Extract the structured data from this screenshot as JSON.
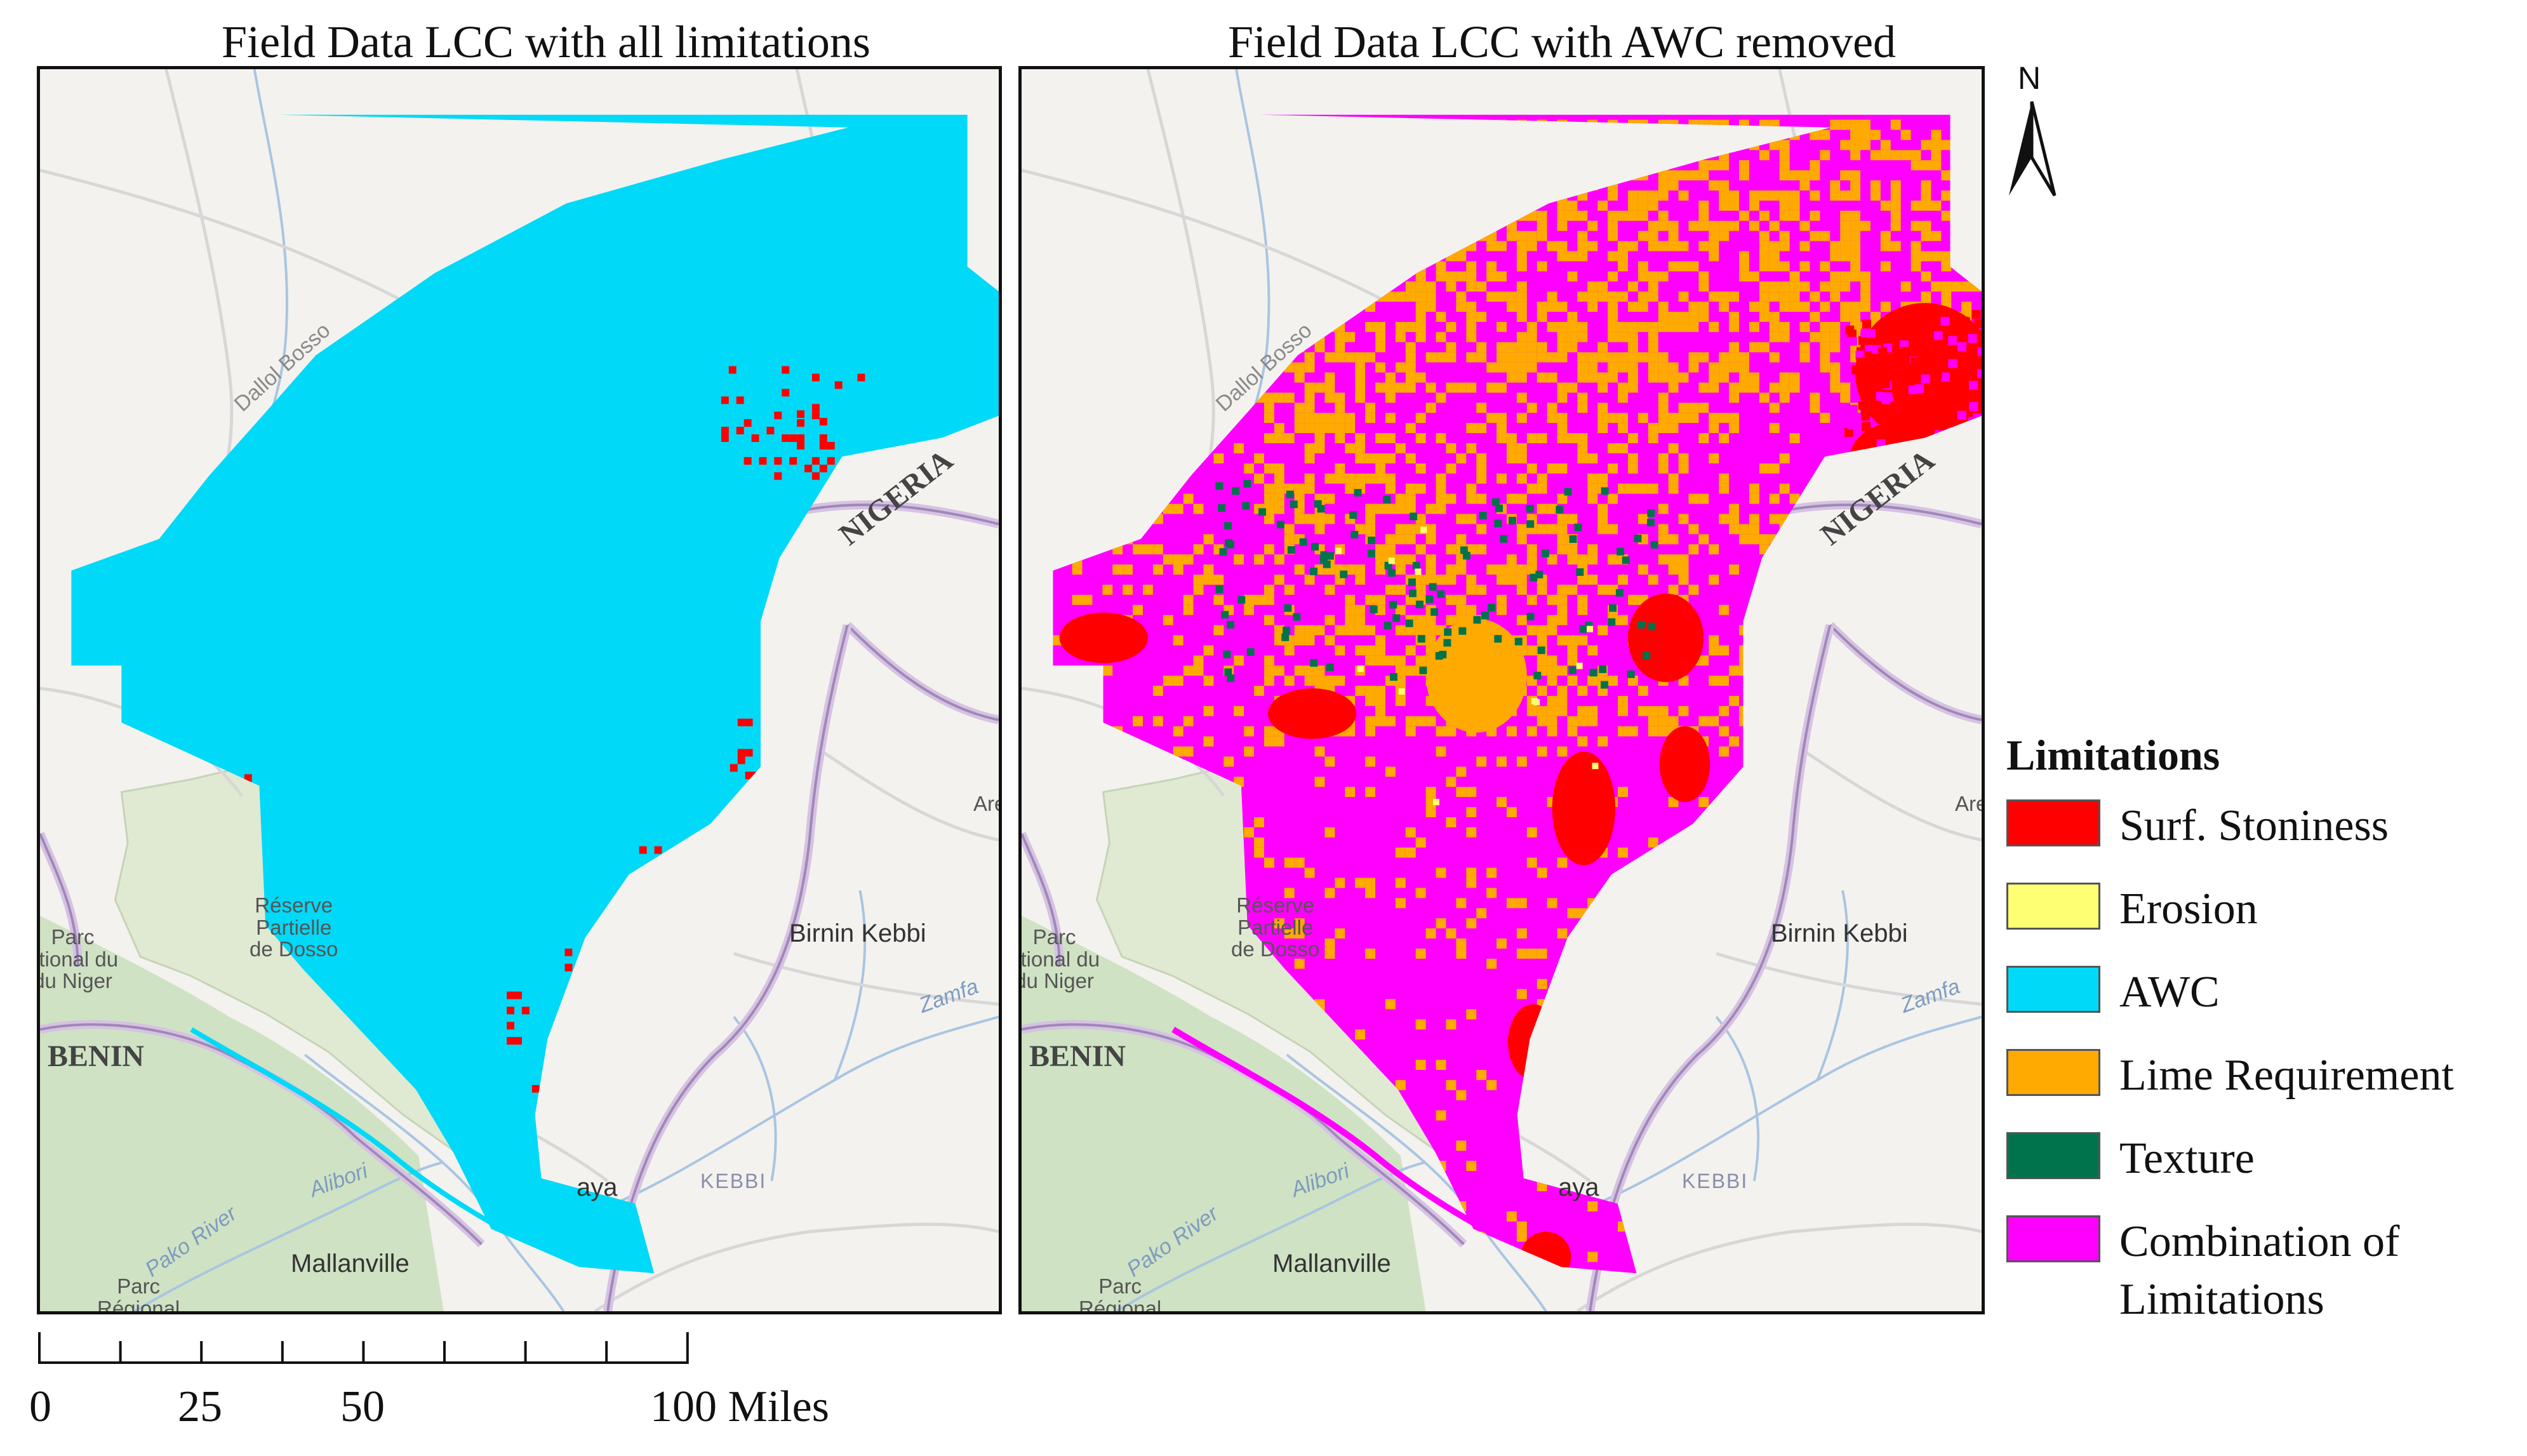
{
  "panels": [
    {
      "title": "Field Data LCC with all limitations",
      "mode": "all"
    },
    {
      "title": "Field Data LCC with AWC removed",
      "mode": "awc_removed"
    }
  ],
  "basemap_labels": {
    "nigeria": "NIGERIA",
    "benin": "BENIN",
    "dallol_bosso": "Dallol Bosso",
    "reserve": "Réserve\nPartielle\nde Dosso",
    "parc_niger": "Parc\national du\ndu Niger",
    "birnin_kebbi": "Birnin Kebbi",
    "zamfara": "Zamfa",
    "kebbi": "KEBBI",
    "alibori": "Alibori",
    "pako_river": "Pako River",
    "malanville": "Mallanville",
    "parc_regional": "Parc\nRégional",
    "aya": "aya",
    "are": "Are"
  },
  "north_arrow": {
    "label": "N"
  },
  "legend": {
    "title": "Limitations",
    "items": [
      {
        "label": "Surf. Stoniness",
        "color": "#ff0000"
      },
      {
        "label": "Erosion",
        "color": "#ffff73"
      },
      {
        "label": "AWC",
        "color": "#00d9f8"
      },
      {
        "label": "Lime Requirement",
        "color": "#ffaa00"
      },
      {
        "label": "Texture",
        "color": "#00734c"
      },
      {
        "label": "Combination of\nLimitations",
        "color": "#ff00ff"
      }
    ]
  },
  "scale_bar": {
    "labels": [
      "0",
      "25",
      "50",
      "100 Miles"
    ],
    "values": [
      0,
      25,
      50,
      100
    ]
  }
}
